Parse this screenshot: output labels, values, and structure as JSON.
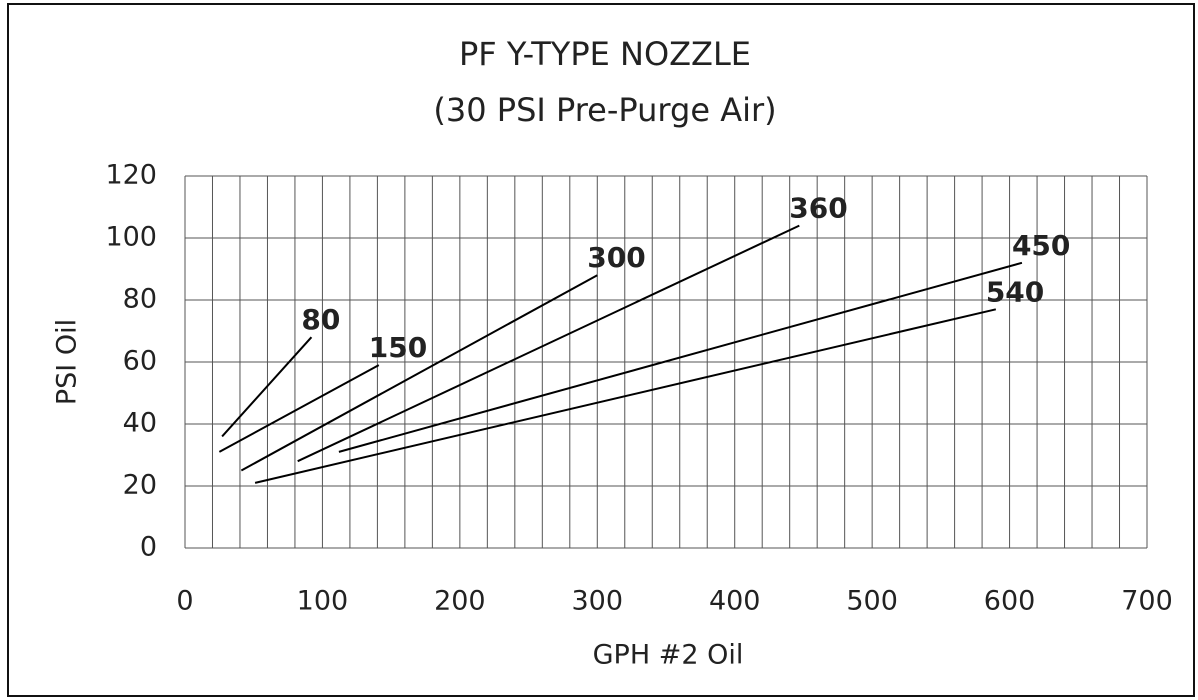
{
  "chart_data": {
    "type": "line",
    "title": "PF Y-TYPE NOZZLE",
    "subtitle": "(30 PSI Pre-Purge Air)",
    "x_label": "GPH #2 Oil",
    "y_label": "PSI Oil",
    "xlim": [
      0,
      700
    ],
    "xticks": [
      0,
      100,
      200,
      300,
      400,
      500,
      600,
      700
    ],
    "ylim": [
      0,
      120
    ],
    "yticks": [
      0,
      20,
      40,
      60,
      80,
      100,
      120
    ],
    "xgrid": [
      0,
      20,
      40,
      60,
      80,
      100,
      120,
      140,
      160,
      180,
      200,
      220,
      240,
      260,
      280,
      300,
      320,
      340,
      360,
      380,
      400,
      420,
      440,
      460,
      480,
      500,
      520,
      540,
      560,
      580,
      600,
      620,
      640,
      660,
      680,
      700
    ],
    "grid": true,
    "series": [
      {
        "name": "80",
        "color": "#000000",
        "x": [
          27,
          92
        ],
        "values": [
          36,
          68
        ]
      },
      {
        "name": "150",
        "color": "#000000",
        "x": [
          25,
          141
        ],
        "values": [
          31,
          59
        ]
      },
      {
        "name": "300",
        "color": "#000000",
        "x": [
          41,
          300
        ],
        "values": [
          25,
          88
        ]
      },
      {
        "name": "360",
        "color": "#000000",
        "x": [
          82,
          447
        ],
        "values": [
          28,
          104
        ]
      },
      {
        "name": "450",
        "color": "#000000",
        "x": [
          112,
          609
        ],
        "values": [
          31,
          92
        ]
      },
      {
        "name": "540",
        "color": "#000000",
        "x": [
          51,
          590
        ],
        "values": [
          21,
          77
        ]
      }
    ]
  }
}
